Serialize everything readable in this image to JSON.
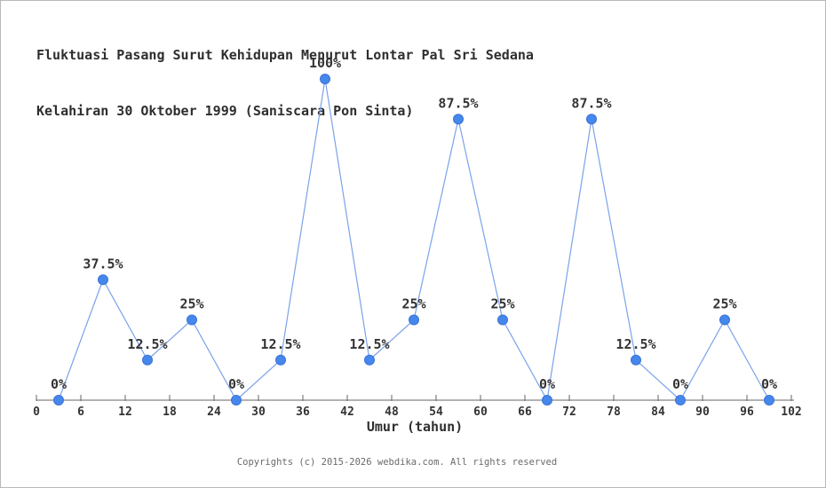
{
  "page": {
    "title_line1": "Fluktuasi Pasang Surut Kehidupan Menurut Lontar Pal Sri Sedana",
    "title_line2": "Kelahiran 30 Oktober 1999 (Saniscara Pon Sinta)",
    "footer": "Copyrights (c) 2015-2026 webdika.com. All rights reserved"
  },
  "chart_data": {
    "type": "line",
    "title": "Fluktuasi Pasang Surut Kehidupan Menurut Lontar Pal Sri Sedana",
    "subtitle": "Kelahiran 30 Oktober 1999 (Saniscara Pon Sinta)",
    "xlabel": "Umur (tahun)",
    "ylabel": "",
    "x": [
      3,
      9,
      15,
      21,
      27,
      33,
      39,
      45,
      51,
      57,
      63,
      69,
      75,
      81,
      87,
      93,
      99
    ],
    "values": [
      0,
      37.5,
      12.5,
      25,
      0,
      12.5,
      100,
      12.5,
      25,
      87.5,
      25,
      0,
      87.5,
      12.5,
      0,
      25,
      0
    ],
    "point_labels": [
      "0%",
      "37.5%",
      "12.5%",
      "25%",
      "0%",
      "12.5%",
      "100%",
      "12.5%",
      "25%",
      "87.5%",
      "25%",
      "0%",
      "87.5%",
      "12.5%",
      "0%",
      "25%",
      "0%"
    ],
    "x_ticks": [
      0,
      6,
      12,
      18,
      24,
      30,
      36,
      42,
      48,
      54,
      60,
      66,
      72,
      78,
      84,
      90,
      96,
      102
    ],
    "x_range": [
      0,
      102
    ],
    "ylim": [
      0,
      100
    ],
    "grid": false,
    "legend": "none",
    "colors": {
      "marker_fill": "#4687ec",
      "marker_stroke": "#3a74d8",
      "line": "#7ba2ea",
      "axis": "#666666",
      "tick_label": "#333333",
      "point_label": "#333333"
    }
  }
}
